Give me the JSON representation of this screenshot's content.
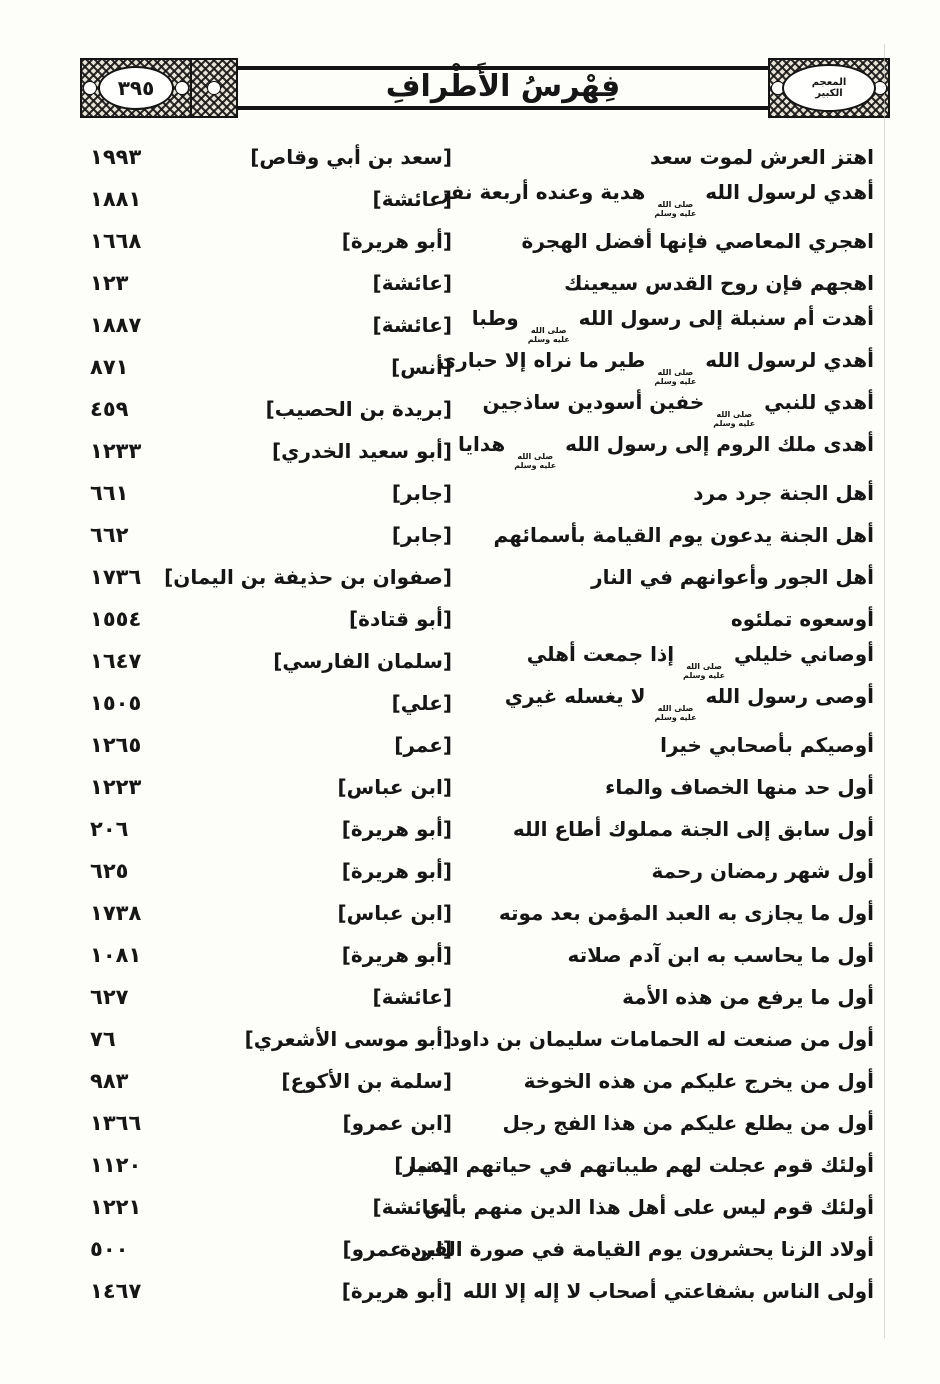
{
  "colors": {
    "ink": "#161616",
    "paper": "#fdfdfa"
  },
  "header": {
    "title": "فِهْرسُ الأَطْرافِ",
    "page_number": "٣٩٥",
    "stamp_line1": "المعجم",
    "stamp_line2": "الكبير"
  },
  "honorific": {
    "symbol": "ﷺ",
    "line1": "صلى الله",
    "line2": "عليه وسلم"
  },
  "index": {
    "rows": [
      {
        "text": "اهتز العرش لموت سعد",
        "narrator": "[سعد بن أبي وقاص]",
        "page": "١٩٩٣"
      },
      {
        "text": "أهدي لرسول الله ﷺ هدية وعنده أربعة نفر",
        "narrator": "[عائشة]",
        "page": "١٨٨١"
      },
      {
        "text": "اهجري المعاصي فإنها أفضل الهجرة",
        "narrator": "[أبو هريرة]",
        "page": "١٦٦٨"
      },
      {
        "text": "اهجهم فإن روح القدس سيعينك",
        "narrator": "[عائشة]",
        "page": "١٢٣"
      },
      {
        "text": "أهدت أم سنبلة إلى رسول الله ﷺ وطبا",
        "narrator": "[عائشة]",
        "page": "١٨٨٧"
      },
      {
        "text": "أهدي لرسول الله ﷺ طير ما نراه إلا حبارى",
        "narrator": "[أنس]",
        "page": "٨٧١"
      },
      {
        "text": "أهدي للنبي ﷺ خفين أسودين ساذجين",
        "narrator": "[بريدة بن الحصيب]",
        "page": "٤٥٩"
      },
      {
        "text": "أهدى ملك الروم إلى رسول الله ﷺ هدايا",
        "narrator": "[أبو سعيد الخدري]",
        "page": "١٢٣٣"
      },
      {
        "text": "أهل الجنة جرد مرد",
        "narrator": "[جابر]",
        "page": "٦٦١"
      },
      {
        "text": "أهل الجنة يدعون يوم القيامة بأسمائهم",
        "narrator": "[جابر]",
        "page": "٦٦٢"
      },
      {
        "text": "أهل الجور وأعوانهم في النار",
        "narrator": "[صفوان بن حذيفة بن اليمان]",
        "page": "١٧٣٦"
      },
      {
        "text": "أوسعوه تملئوه",
        "narrator": "[أبو قتادة]",
        "page": "١٥٥٤"
      },
      {
        "text": "أوصاني خليلي ﷺ إذا جمعت أهلي",
        "narrator": "[سلمان الفارسي]",
        "page": "١٦٤٧"
      },
      {
        "text": "أوصى رسول الله ﷺ لا يغسله غيري",
        "narrator": "[علي]",
        "page": "١٥٠٥"
      },
      {
        "text": "أوصيكم بأصحابي خيرا",
        "narrator": "[عمر]",
        "page": "١٢٦٥"
      },
      {
        "text": "أول حد منها الخصاف والماء",
        "narrator": "[ابن عباس]",
        "page": "١٢٢٣"
      },
      {
        "text": "أول سابق إلى الجنة مملوك أطاع الله",
        "narrator": "[أبو هريرة]",
        "page": "٢٠٦"
      },
      {
        "text": "أول شهر رمضان رحمة",
        "narrator": "[أبو هريرة]",
        "page": "٦٢٥"
      },
      {
        "text": "أول ما يجازى به العبد المؤمن بعد موته",
        "narrator": "[ابن عباس]",
        "page": "١٧٣٨"
      },
      {
        "text": "أول ما يحاسب به ابن آدم صلاته",
        "narrator": "[أبو هريرة]",
        "page": "١٠٨١"
      },
      {
        "text": "أول ما يرفع من هذه الأمة",
        "narrator": "[عائشة]",
        "page": "٦٢٧"
      },
      {
        "text": "أول من صنعت له الحمامات سليمان بن داود",
        "narrator": "[أبو موسى الأشعري]",
        "page": "٧٦"
      },
      {
        "text": "أول من يخرج عليكم من هذه الخوخة",
        "narrator": "[سلمة بن الأكوع]",
        "page": "٩٨٣"
      },
      {
        "text": "أول من يطلع عليكم من هذا الفج رجل",
        "narrator": "[ابن عمرو]",
        "page": "١٣٦٦"
      },
      {
        "text": "أولئك قوم عجلت لهم طيباتهم في حياتهم الدنيا",
        "narrator": "[عمر]",
        "page": "١١٢٠"
      },
      {
        "text": "أولئك قوم ليس على أهل هذا الدين منهم بأس",
        "narrator": "[عائشة]",
        "page": "١٢٢١"
      },
      {
        "text": "أولاد الزنا يحشرون يوم القيامة في صورة القردة",
        "narrator": "[ابن عمرو]",
        "page": "٥٠٠"
      },
      {
        "text": "أولى الناس بشفاعتي أصحاب لا إله إلا الله",
        "narrator": "[أبو هريرة]",
        "page": "١٤٦٧"
      }
    ]
  }
}
